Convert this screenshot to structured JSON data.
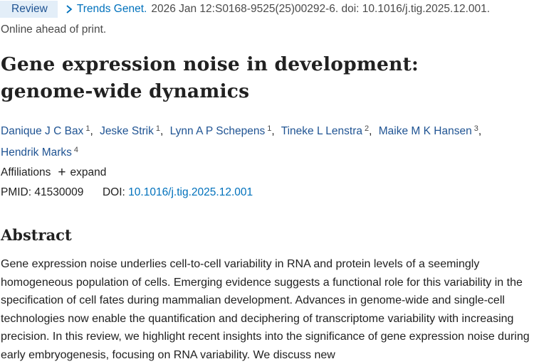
{
  "header": {
    "badge": "Review",
    "journal": "Trends Genet.",
    "citation": "2026 Jan 12:S0168-9525(25)00292-6. doi: 10.1016/j.tig.2025.12.001.",
    "status": "Online ahead of print."
  },
  "article": {
    "title": "Gene expression noise in development: genome-wide dynamics",
    "authors": [
      {
        "name": "Danique J C Bax",
        "aff": "1"
      },
      {
        "name": "Jeske Strik",
        "aff": "1"
      },
      {
        "name": "Lynn A P Schepens",
        "aff": "1"
      },
      {
        "name": "Tineke L Lenstra",
        "aff": "2"
      },
      {
        "name": "Maike M K Hansen",
        "aff": "3"
      },
      {
        "name": "Hendrik Marks",
        "aff": "4"
      }
    ],
    "separator": ",",
    "affiliations_label": "Affiliations",
    "expand_label": "expand",
    "pmid_label": "PMID:",
    "pmid": "41530009",
    "doi_label": "DOI:",
    "doi": "10.1016/j.tig.2025.12.001"
  },
  "abstract": {
    "heading": "Abstract",
    "text": "Gene expression noise underlies cell-to-cell variability in RNA and protein levels of a seemingly homogeneous population of cells. Emerging evidence suggests a functional role for this variability in the specification of cell fates during mammalian development. Advances in genome-wide and single-cell technologies now enable the quantification and deciphering of transcriptome variability with increasing precision. In this review, we highlight recent insights into the significance of gene expression noise during early embryogenesis, focusing on RNA variability. We discuss new"
  },
  "icons": {
    "chevron": "chevron-right-icon",
    "plus": "plus-icon"
  },
  "colors": {
    "link": "#0071bc",
    "author": "#205493",
    "badge_bg": "#e3eef8"
  }
}
